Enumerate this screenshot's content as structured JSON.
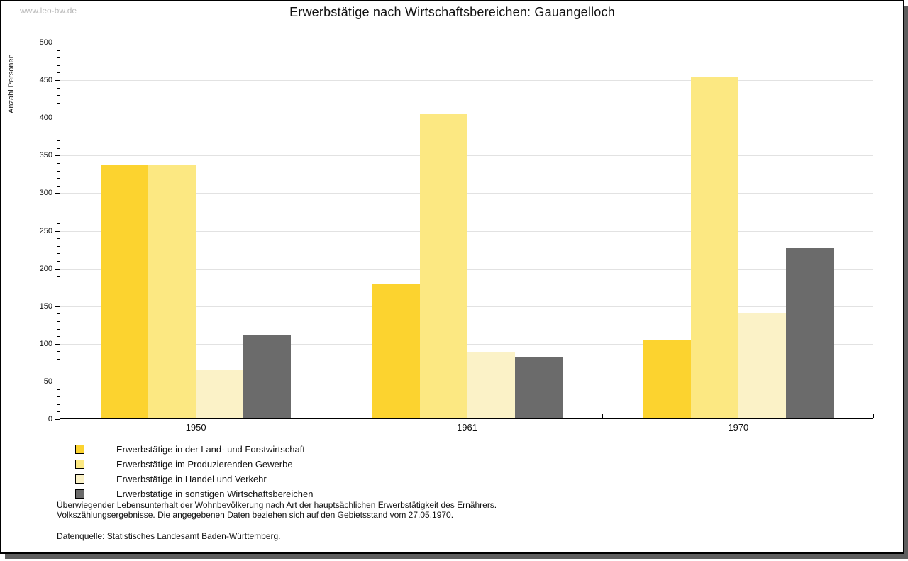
{
  "watermark": "www.leo-bw.de",
  "header": {
    "title": "Erwerbstätige nach Wirtschaftsbereichen: Gauangelloch"
  },
  "chart_data": {
    "type": "bar",
    "title": "Erwerbstätige nach Wirtschaftsbereichen: Gauangelloch",
    "xlabel": "",
    "ylabel": "Anzahl Personen",
    "ylim": [
      0,
      500
    ],
    "y_major_step": 50,
    "y_minor_step": 10,
    "grid": true,
    "legend_position": "bottom-left",
    "categories": [
      "1950",
      "1961",
      "1970"
    ],
    "series": [
      {
        "name": "Erwerbstätige in der Land- und Forstwirtschaft",
        "color": "#fcd32f",
        "values": [
          336,
          178,
          104
        ]
      },
      {
        "name": "Erwerbstätige im Produzierenden Gewerbe",
        "color": "#fce882",
        "values": [
          337,
          404,
          454
        ]
      },
      {
        "name": "Erwerbstätige in Handel und Verkehr",
        "color": "#fbf2c7",
        "values": [
          64,
          88,
          139
        ]
      },
      {
        "name": "Erwerbstätige in sonstigen Wirtschaftsbereichen",
        "color": "#6b6b6b",
        "values": [
          110,
          82,
          227
        ]
      }
    ]
  },
  "footer": {
    "note_line1": "Überwiegender Lebensunterhalt der Wohnbevölkerung nach Art der hauptsächlichen Erwerbstätigkeit des Ernährers.",
    "note_line2": "Volkszählungsergebnisse. Die angegebenen Daten beziehen sich auf den Gebietsstand vom 27.05.1970.",
    "source": "Datenquelle: Statistisches Landesamt Baden-Württemberg."
  },
  "colors": {
    "gridline": "#e2e2e2",
    "axis": "#000000",
    "watermark": "#b9b9b9",
    "shadow": "#5e5e5e",
    "background": "#ffffff"
  }
}
